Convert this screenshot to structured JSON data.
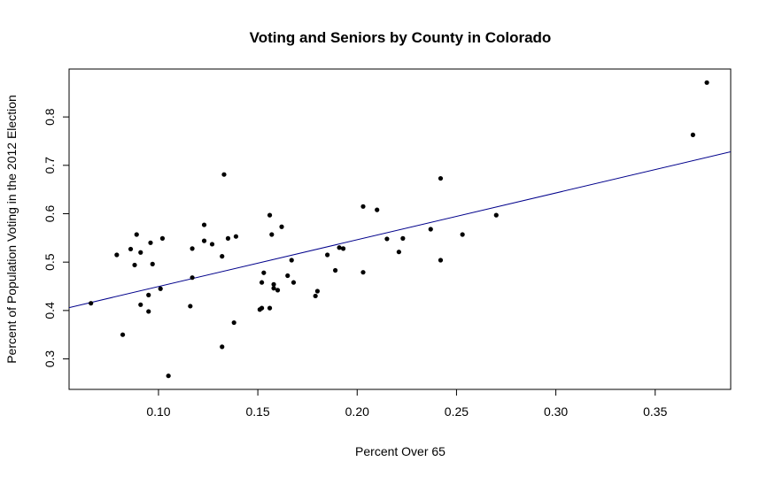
{
  "chart_data": {
    "type": "scatter",
    "title": "Voting and Seniors by County in Colorado",
    "xlabel": "Percent Over 65",
    "ylabel": "Percent of Population Voting in the 2012 Election",
    "xlim": [
      0.055,
      0.388
    ],
    "ylim": [
      0.237,
      0.899
    ],
    "x_ticks": [
      0.1,
      0.15,
      0.2,
      0.25,
      0.3,
      0.35
    ],
    "x_tick_labels": [
      "0.10",
      "0.15",
      "0.20",
      "0.25",
      "0.30",
      "0.35"
    ],
    "y_ticks": [
      0.3,
      0.4,
      0.5,
      0.6,
      0.7,
      0.8
    ],
    "y_tick_labels": [
      "0.3",
      "0.4",
      "0.5",
      "0.6",
      "0.7",
      "0.8"
    ],
    "grid": false,
    "point_color": "#000000",
    "regression_line": {
      "color": "#00008B",
      "points": [
        [
          0.055,
          0.406
        ],
        [
          0.388,
          0.728
        ]
      ]
    },
    "points": [
      [
        0.066,
        0.415
      ],
      [
        0.079,
        0.515
      ],
      [
        0.082,
        0.35
      ],
      [
        0.086,
        0.527
      ],
      [
        0.088,
        0.494
      ],
      [
        0.089,
        0.557
      ],
      [
        0.091,
        0.412
      ],
      [
        0.091,
        0.52
      ],
      [
        0.095,
        0.398
      ],
      [
        0.095,
        0.432
      ],
      [
        0.096,
        0.54
      ],
      [
        0.097,
        0.496
      ],
      [
        0.101,
        0.445
      ],
      [
        0.102,
        0.549
      ],
      [
        0.105,
        0.265
      ],
      [
        0.116,
        0.409
      ],
      [
        0.117,
        0.468
      ],
      [
        0.117,
        0.528
      ],
      [
        0.123,
        0.544
      ],
      [
        0.123,
        0.577
      ],
      [
        0.127,
        0.537
      ],
      [
        0.132,
        0.512
      ],
      [
        0.132,
        0.325
      ],
      [
        0.133,
        0.681
      ],
      [
        0.135,
        0.549
      ],
      [
        0.138,
        0.375
      ],
      [
        0.139,
        0.553
      ],
      [
        0.151,
        0.402
      ],
      [
        0.152,
        0.458
      ],
      [
        0.152,
        0.405
      ],
      [
        0.153,
        0.478
      ],
      [
        0.156,
        0.405
      ],
      [
        0.156,
        0.597
      ],
      [
        0.157,
        0.557
      ],
      [
        0.158,
        0.454
      ],
      [
        0.158,
        0.446
      ],
      [
        0.16,
        0.442
      ],
      [
        0.162,
        0.573
      ],
      [
        0.165,
        0.472
      ],
      [
        0.167,
        0.504
      ],
      [
        0.168,
        0.458
      ],
      [
        0.179,
        0.43
      ],
      [
        0.18,
        0.44
      ],
      [
        0.185,
        0.515
      ],
      [
        0.189,
        0.483
      ],
      [
        0.191,
        0.53
      ],
      [
        0.193,
        0.528
      ],
      [
        0.203,
        0.615
      ],
      [
        0.203,
        0.479
      ],
      [
        0.21,
        0.608
      ],
      [
        0.215,
        0.548
      ],
      [
        0.221,
        0.521
      ],
      [
        0.223,
        0.549
      ],
      [
        0.237,
        0.568
      ],
      [
        0.242,
        0.673
      ],
      [
        0.242,
        0.504
      ],
      [
        0.253,
        0.557
      ],
      [
        0.27,
        0.597
      ],
      [
        0.369,
        0.763
      ],
      [
        0.376,
        0.871
      ]
    ]
  }
}
